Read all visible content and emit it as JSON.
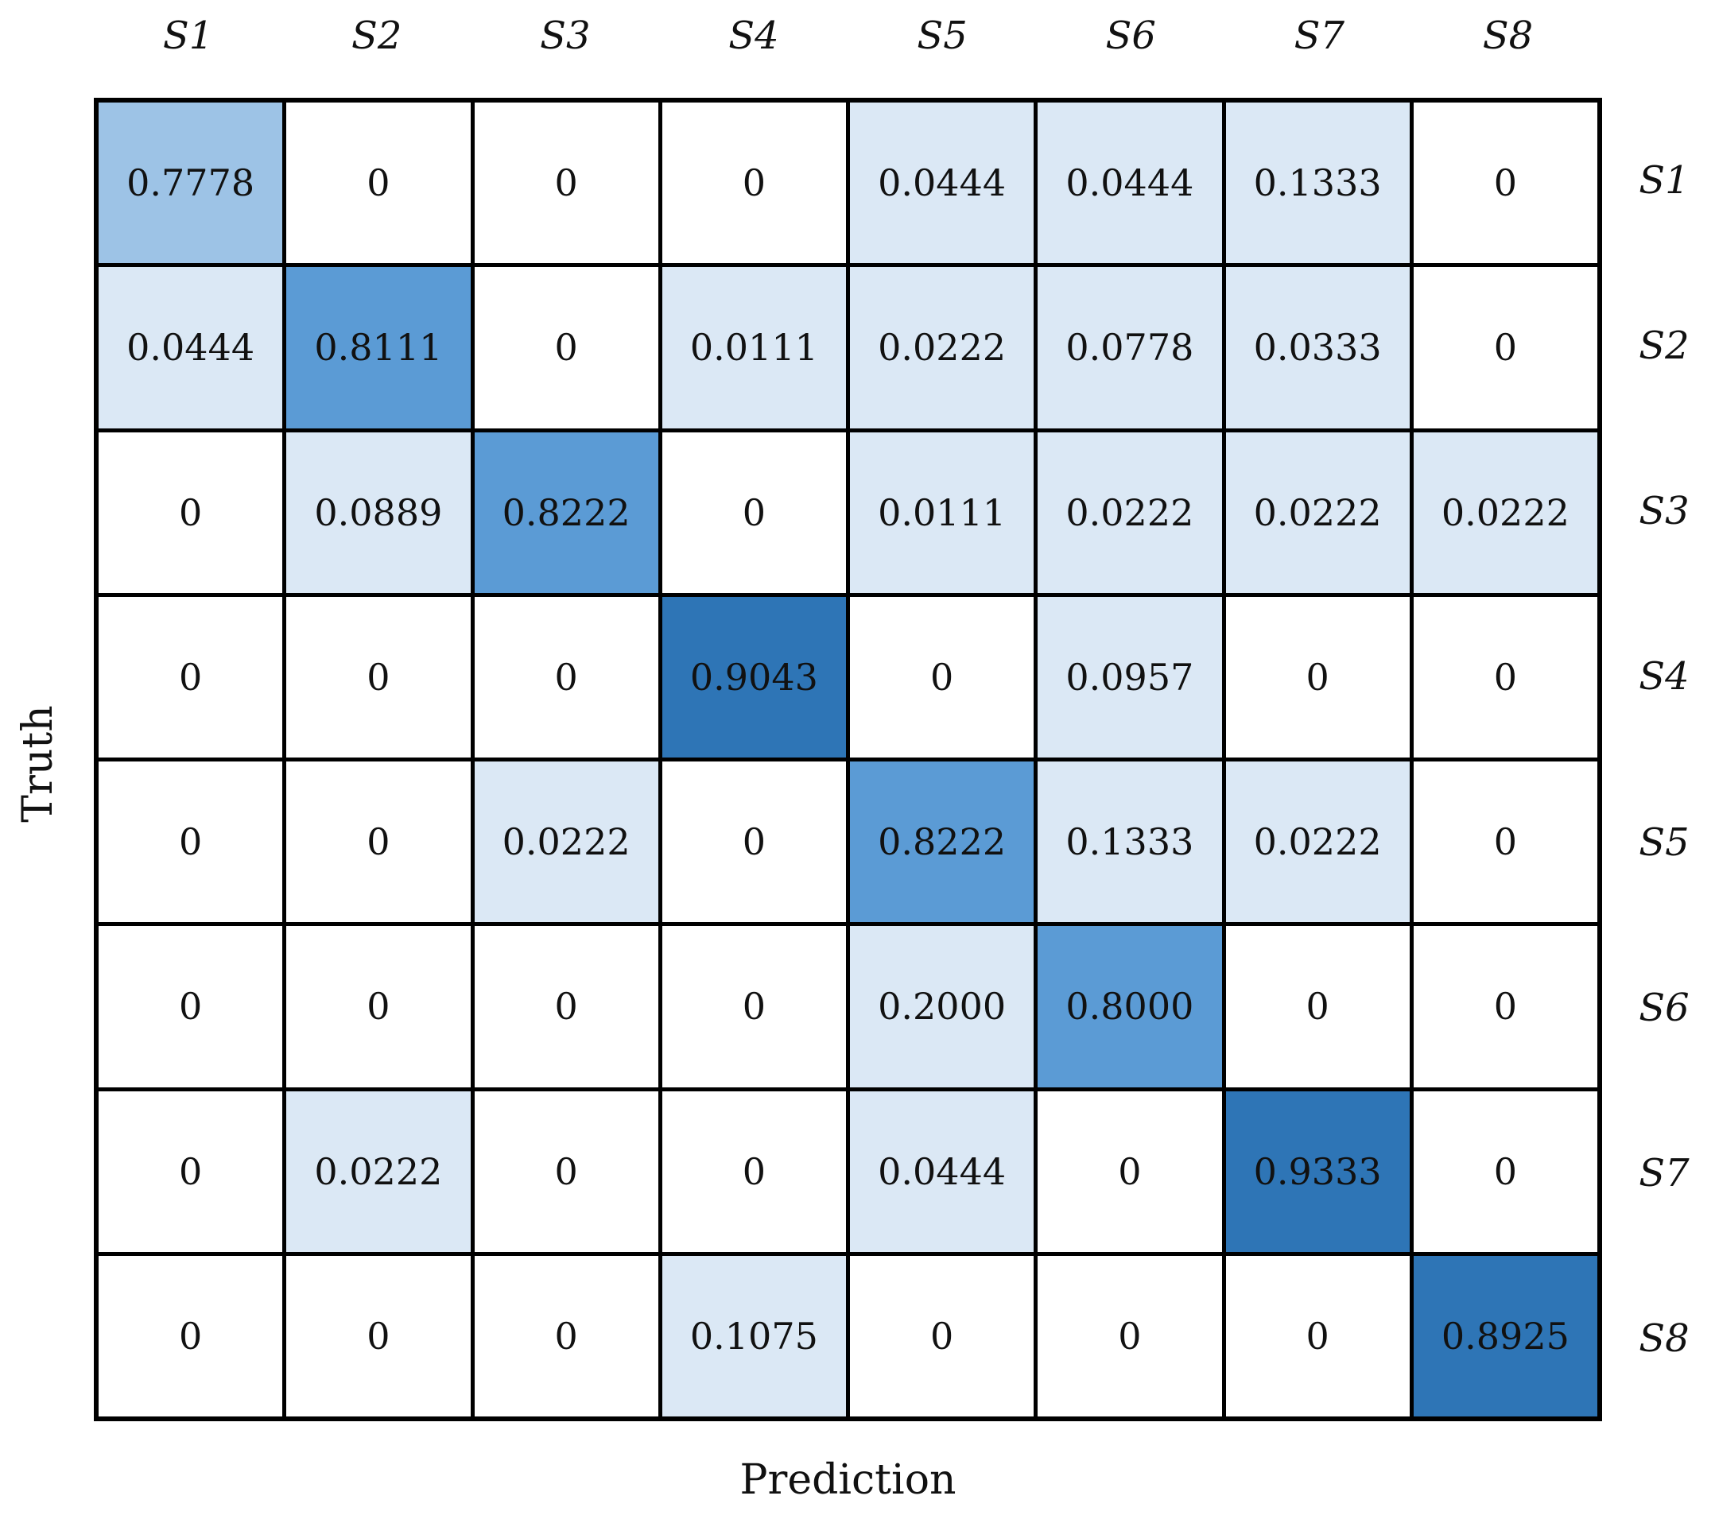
{
  "chart_data": {
    "type": "heatmap",
    "xlabel": "Prediction",
    "ylabel": "Truth",
    "col_labels": [
      "S1",
      "S2",
      "S3",
      "S4",
      "S5",
      "S6",
      "S7",
      "S8"
    ],
    "row_labels": [
      "S1",
      "S2",
      "S3",
      "S4",
      "S5",
      "S6",
      "S7",
      "S8"
    ],
    "matrix": [
      [
        0.7778,
        0,
        0,
        0,
        0.0444,
        0.0444,
        0.1333,
        0
      ],
      [
        0.0444,
        0.8111,
        0,
        0.0111,
        0.0222,
        0.0778,
        0.0333,
        0
      ],
      [
        0,
        0.0889,
        0.8222,
        0,
        0.0111,
        0.0222,
        0.0222,
        0.0222
      ],
      [
        0,
        0,
        0,
        0.9043,
        0,
        0.0957,
        0,
        0
      ],
      [
        0,
        0,
        0.0222,
        0,
        0.8222,
        0.1333,
        0.0222,
        0
      ],
      [
        0,
        0,
        0,
        0,
        0.2,
        0.8,
        0,
        0
      ],
      [
        0,
        0.0222,
        0,
        0,
        0.0444,
        0,
        0.9333,
        0
      ],
      [
        0,
        0,
        0,
        0.1075,
        0,
        0,
        0,
        0.8925
      ]
    ],
    "value_range": [
      0,
      1
    ],
    "zero_display": "0",
    "decimal_places": 4,
    "legend_position": "none",
    "grid_line_color": "#000000",
    "cell_text_color": "#111111",
    "color_scale": [
      {
        "max": 0,
        "color": "#ffffff"
      },
      {
        "max": 0.25,
        "color": "#dbe8f5"
      },
      {
        "max": 0.79,
        "color": "#9dc3e6"
      },
      {
        "max": 0.86,
        "color": "#5b9bd5"
      },
      {
        "max": 1.0,
        "color": "#2e75b6"
      }
    ]
  }
}
